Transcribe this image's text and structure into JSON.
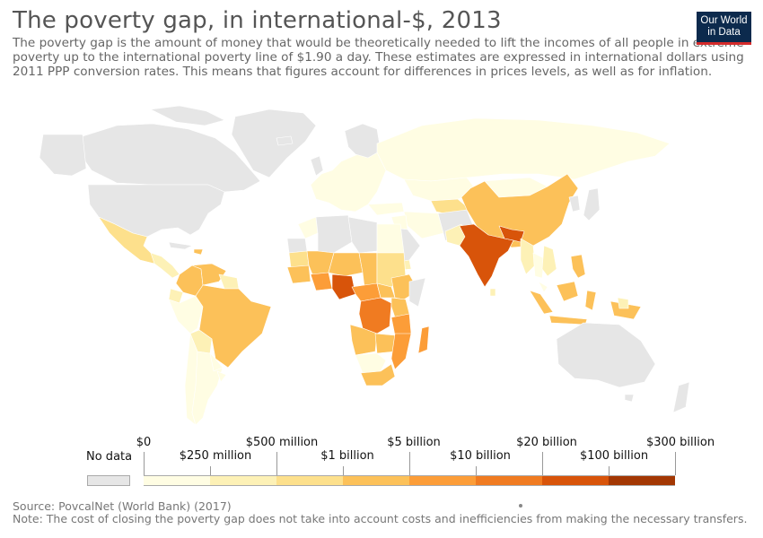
{
  "title": "The poverty gap, in international-$, 2013",
  "subtitle": "The poverty gap is the amount of money that would be theoretically needed to lift the incomes of all people in extreme poverty up to the international poverty line of $1.90 a day. These estimates are expressed in international dollars using 2011 PPP conversion rates. This means that figures account for differences in prices levels, as well as for inflation.",
  "logo": {
    "line1": "Our World",
    "line2": "in Data"
  },
  "legend": {
    "no_data_label": "No data",
    "top_labels": [
      "$0",
      "$500 million",
      "$5 billion",
      "$20 billion",
      "$300 billion"
    ],
    "bottom_labels": [
      "$250 million",
      "$1 billion",
      "$10 billion",
      "$100 billion"
    ],
    "colors": [
      "#fffde3",
      "#fdf1b6",
      "#fde08c",
      "#fcc159",
      "#fc9d38",
      "#f07b21",
      "#d8540a",
      "#a33703"
    ],
    "no_data_color": "#e6e6e6"
  },
  "source": "Source: PovcalNet (World Bank) (2017)",
  "note": "Note: The cost of closing the poverty gap does not take into account costs and inefficiencies from making the necessary transfers."
}
